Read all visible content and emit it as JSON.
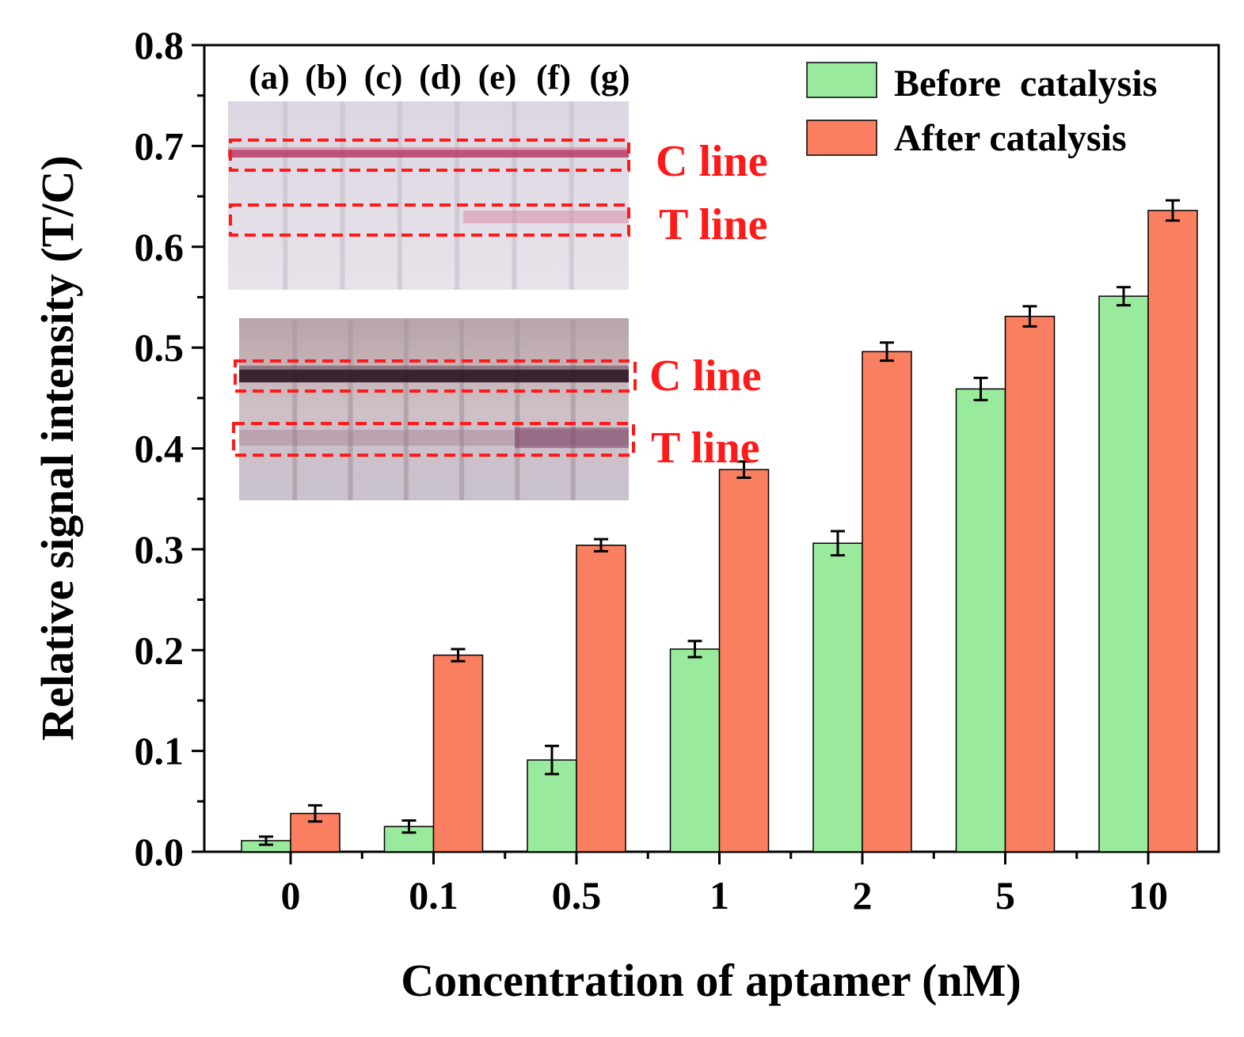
{
  "chart_data": {
    "type": "bar",
    "title": "",
    "xlabel": "Concentration of aptamer (nM)",
    "ylabel": "Relative signal intensity (T/C)",
    "ylim": [
      0,
      0.8
    ],
    "yticks": [
      "0.0",
      "0.1",
      "0.2",
      "0.3",
      "0.4",
      "0.5",
      "0.6",
      "0.7",
      "0.8"
    ],
    "categories": [
      "0",
      "0.1",
      "0.5",
      "1",
      "2",
      "5",
      "10"
    ],
    "series": [
      {
        "name": "Before  catalysis",
        "color": "#9aea9e",
        "values": [
          0.011,
          0.025,
          0.091,
          0.201,
          0.306,
          0.459,
          0.551
        ],
        "errors": [
          0.004,
          0.006,
          0.014,
          0.008,
          0.012,
          0.011,
          0.009
        ]
      },
      {
        "name": "After catalysis",
        "color": "#fa7f60",
        "values": [
          0.038,
          0.195,
          0.304,
          0.379,
          0.496,
          0.531,
          0.636
        ],
        "errors": [
          0.008,
          0.006,
          0.006,
          0.008,
          0.009,
          0.01,
          0.01
        ]
      }
    ],
    "legend_position": "top-right",
    "inset": {
      "strip_labels": [
        "(a)",
        "(b)",
        "(c)",
        "(d)",
        "(e)",
        "(f)",
        "(g)"
      ],
      "c_line_label": "C line",
      "t_line_label": "T line"
    }
  }
}
